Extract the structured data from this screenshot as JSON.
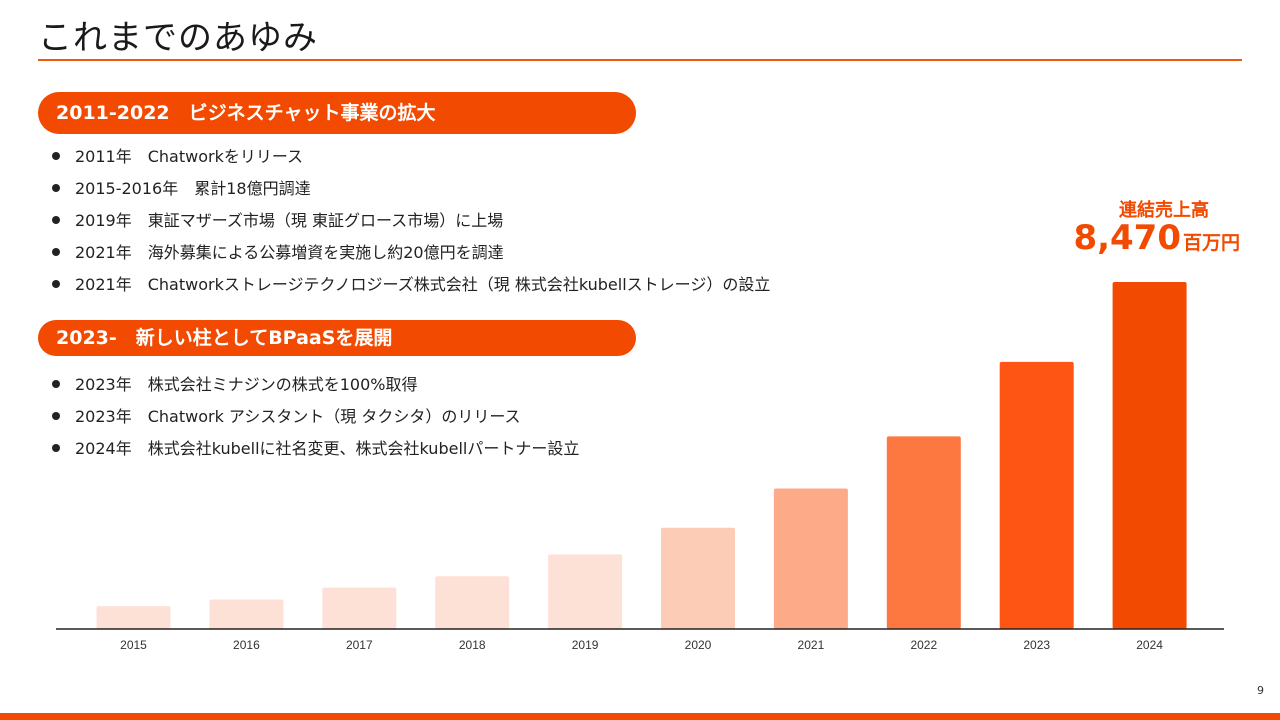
{
  "page": {
    "title": "これまでのあゆみ",
    "page_number": "9"
  },
  "sections": [
    {
      "heading": "2011-2022　ビジネスチャット事業の拡大",
      "items": [
        "2011年　Chatworkをリリース",
        "2015-2016年　累計18億円調達",
        "2019年　東証マザーズ市場（現 東証グロース市場）に上場",
        "2021年　海外募集による公募増資を実施し約20億円を調達",
        "2021年　Chatworkストレージテクノロジーズ株式会社（現 株式会社kubellストレージ）の設立"
      ]
    },
    {
      "heading": "2023-　新しい柱としてBPaaSを展開",
      "items": [
        "2023年　株式会社ミナジンの株式を100%取得",
        "2023年　Chatwork アシスタント（現 タクシタ）のリリース",
        "2024年　株式会社kubellに社名変更、株式会社kubellパートナー設立"
      ]
    }
  ],
  "highlight": {
    "label": "連結売上高",
    "value": "8,470",
    "unit": "百万円"
  },
  "colors": {
    "accent": "#f24a00",
    "bar_gradient": [
      "#fde0d6",
      "#fde0d6",
      "#fde0d6",
      "#fde0d6",
      "#fde0d6",
      "#fdccb7",
      "#fdaa88",
      "#fd7840",
      "#ff5514",
      "#f24a00"
    ]
  },
  "chart_data": {
    "type": "bar",
    "categories": [
      "2015",
      "2016",
      "2017",
      "2018",
      "2019",
      "2020",
      "2021",
      "2022",
      "2023",
      "2024"
    ],
    "values": [
      560,
      720,
      1010,
      1290,
      1820,
      2470,
      3430,
      4700,
      6520,
      8470
    ],
    "ylim": [
      0,
      8470
    ],
    "xlabel": "",
    "ylabel": "",
    "grid": false,
    "data_labels": {
      "2024": "8,470百万円"
    }
  }
}
